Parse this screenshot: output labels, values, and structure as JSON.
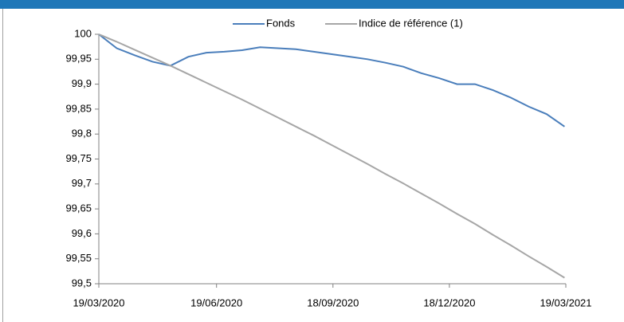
{
  "chart_data": {
    "type": "line",
    "x": [
      "19/03/2020",
      "02/04/2020",
      "16/04/2020",
      "30/04/2020",
      "14/05/2020",
      "28/05/2020",
      "11/06/2020",
      "25/06/2020",
      "09/07/2020",
      "23/07/2020",
      "06/08/2020",
      "20/08/2020",
      "03/09/2020",
      "17/09/2020",
      "01/10/2020",
      "15/10/2020",
      "29/10/2020",
      "12/11/2020",
      "26/11/2020",
      "10/12/2020",
      "24/12/2020",
      "07/01/2021",
      "21/01/2021",
      "04/02/2021",
      "18/02/2021",
      "04/03/2021",
      "18/03/2021"
    ],
    "series": [
      {
        "name": "Fonds",
        "color": "#4a7ebb",
        "values": [
          100,
          99.972,
          99.958,
          99.945,
          99.937,
          99.955,
          99.963,
          99.965,
          99.968,
          99.974,
          99.972,
          99.97,
          99.965,
          99.96,
          99.955,
          99.95,
          99.943,
          99.935,
          99.922,
          99.912,
          99.9,
          99.9,
          99.888,
          99.873,
          99.855,
          99.84,
          99.815
        ]
      },
      {
        "name": "Indice de référence (1)",
        "color": "#a6a6a6",
        "values": [
          100,
          99.985,
          99.969,
          99.953,
          99.937,
          99.92,
          99.903,
          99.886,
          99.869,
          99.851,
          99.833,
          99.815,
          99.797,
          99.778,
          99.759,
          99.74,
          99.72,
          99.701,
          99.681,
          99.661,
          99.64,
          99.62,
          99.598,
          99.577,
          99.555,
          99.534,
          99.512
        ]
      }
    ],
    "xlim": [
      "19/03/2020",
      "19/03/2021"
    ],
    "xticks": [
      "19/03/2020",
      "19/06/2020",
      "18/09/2020",
      "18/12/2020",
      "19/03/2021"
    ],
    "ylim": [
      99.5,
      100
    ],
    "yticks": [
      {
        "value": 99.5,
        "label": "99,5"
      },
      {
        "value": 99.55,
        "label": "99,55"
      },
      {
        "value": 99.6,
        "label": "99,6"
      },
      {
        "value": 99.65,
        "label": "99,65"
      },
      {
        "value": 99.7,
        "label": "99,7"
      },
      {
        "value": 99.75,
        "label": "99,75"
      },
      {
        "value": 99.8,
        "label": "99,8"
      },
      {
        "value": 99.85,
        "label": "99,85"
      },
      {
        "value": 99.9,
        "label": "99,9"
      },
      {
        "value": 99.95,
        "label": "99,95"
      },
      {
        "value": 100,
        "label": "100"
      }
    ],
    "legend": "top"
  }
}
